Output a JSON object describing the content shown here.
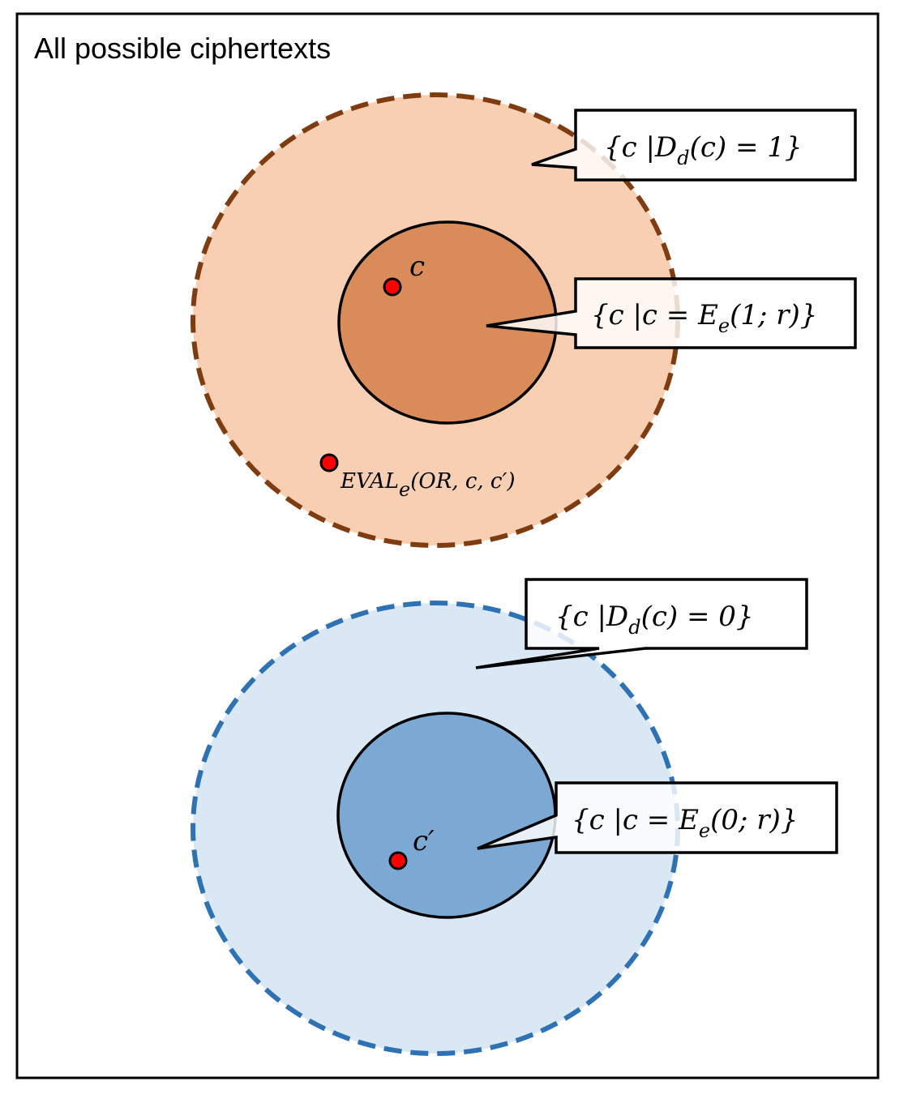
{
  "title": "All possible ciphertexts",
  "colors": {
    "frame": "#000000",
    "outer_region_1_fill": "#f8cfb3",
    "outer_region_1_stroke": "#7f3c10",
    "inner_region_1_fill": "#d98c5a",
    "outer_region_0_fill": "#dae7f5",
    "outer_region_0_stroke": "#2e72b4",
    "inner_region_0_fill": "#7ba9d3",
    "point_fill": "#ff0000"
  },
  "callouts": {
    "decrypt_1": {
      "pre": "{c |D",
      "sub": "d",
      "post": "(c) = 1}"
    },
    "encrypt_1": {
      "pre": "{c |c = E",
      "sub": "e",
      "post": "(1; r)}"
    },
    "decrypt_0": {
      "pre": "{c |D",
      "sub": "d",
      "post": "(c) = 0}"
    },
    "encrypt_0": {
      "pre": "{c |c = E",
      "sub": "e",
      "post": "(0; r)}"
    }
  },
  "points": {
    "c": "c",
    "c_prime": "c′",
    "eval": {
      "pre": "EVAL",
      "sub": "e",
      "post": "(OR, c, c′)"
    }
  }
}
